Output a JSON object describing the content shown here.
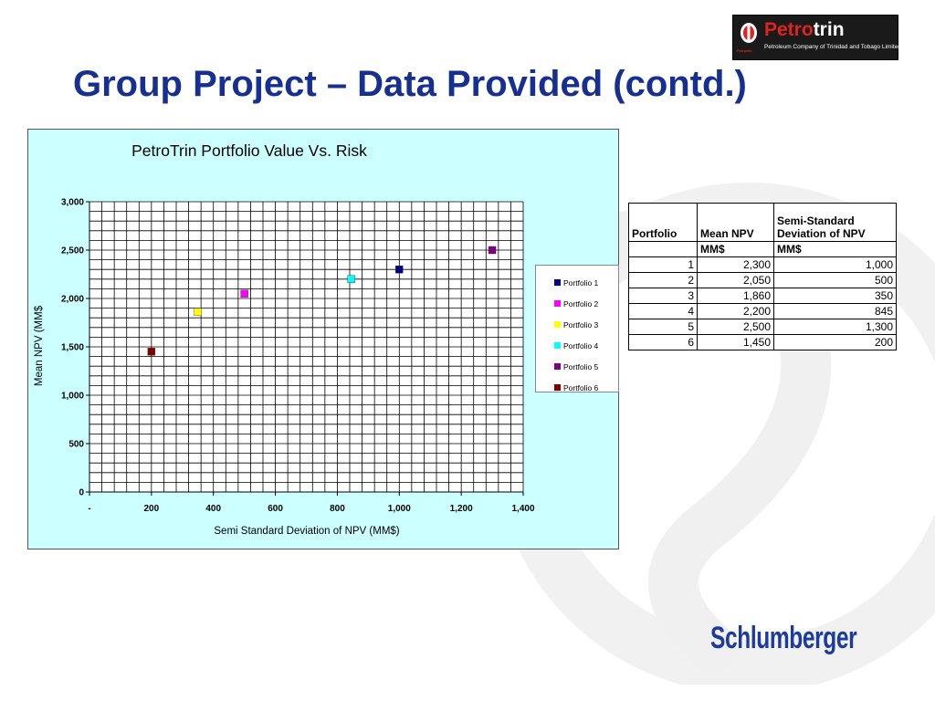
{
  "title": "Group Project – Data Provided (contd.)",
  "logo": {
    "name_red": "Petro",
    "name_white": "trin",
    "tagline": "Petroleum Company of Trinidad and Tobago Limited",
    "small": "Petrotrin"
  },
  "footer_brand": "Schlumberger",
  "colors": {
    "title": "#17308f",
    "chart_background": "#ccffff",
    "brand_blue": "#1c3aa0",
    "logo_red": "#e0231c"
  },
  "chart_data": {
    "type": "scatter",
    "title": "PetroTrin Portfolio Value Vs. Risk",
    "xlabel": "Semi Standard Deviation of NPV (MM$)",
    "ylabel": "Mean NPV (MM$",
    "xlim": [
      0,
      1400
    ],
    "ylim": [
      0,
      3000
    ],
    "x_ticks": [
      {
        "value": 0,
        "label": "-"
      },
      {
        "value": 200,
        "label": "200"
      },
      {
        "value": 400,
        "label": "400"
      },
      {
        "value": 600,
        "label": "600"
      },
      {
        "value": 800,
        "label": "800"
      },
      {
        "value": 1000,
        "label": "1,000"
      },
      {
        "value": 1200,
        "label": "1,200"
      },
      {
        "value": 1400,
        "label": "1,400"
      }
    ],
    "y_ticks": [
      {
        "value": 0,
        "label": "0"
      },
      {
        "value": 500,
        "label": "500"
      },
      {
        "value": 1000,
        "label": "1,000"
      },
      {
        "value": 1500,
        "label": "1,500"
      },
      {
        "value": 2000,
        "label": "2,000"
      },
      {
        "value": 2500,
        "label": "2,500"
      },
      {
        "value": 3000,
        "label": "3,000"
      }
    ],
    "grid": true,
    "legend_position": "right",
    "series": [
      {
        "name": "Portfolio 1",
        "color": "#000080",
        "x": 1000,
        "y": 2300
      },
      {
        "name": "Portfolio 2",
        "color": "#ff00ff",
        "x": 500,
        "y": 2050
      },
      {
        "name": "Portfolio 3",
        "color": "#ffff00",
        "x": 350,
        "y": 1860
      },
      {
        "name": "Portfolio 4",
        "color": "#00ffff",
        "x": 845,
        "y": 2200
      },
      {
        "name": "Portfolio 5",
        "color": "#800080",
        "x": 1300,
        "y": 2500
      },
      {
        "name": "Portfolio 6",
        "color": "#800000",
        "x": 200,
        "y": 1450
      }
    ]
  },
  "table": {
    "headers": [
      "Portfolio",
      "Mean NPV",
      "Semi-Standard Deviation of NPV"
    ],
    "units": [
      "",
      "MM$",
      "MM$"
    ],
    "rows": [
      [
        "1",
        "2,300",
        "1,000"
      ],
      [
        "2",
        "2,050",
        "500"
      ],
      [
        "3",
        "1,860",
        "350"
      ],
      [
        "4",
        "2,200",
        "845"
      ],
      [
        "5",
        "2,500",
        "1,300"
      ],
      [
        "6",
        "1,450",
        "200"
      ]
    ]
  }
}
